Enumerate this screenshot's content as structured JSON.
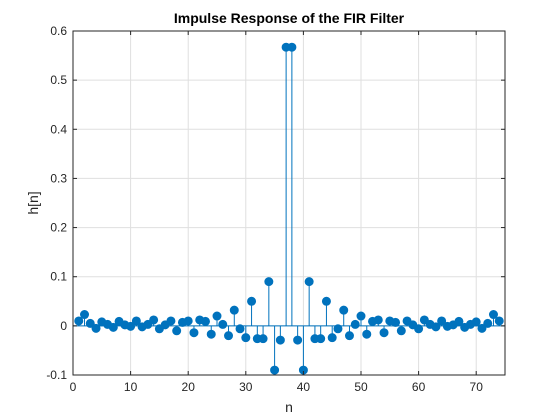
{
  "chart_data": {
    "type": "stem",
    "title": "Impulse Response of the FIR Filter",
    "xlabel": "n",
    "ylabel": "h[n]",
    "xlim": [
      0,
      75
    ],
    "ylim": [
      -0.1,
      0.6
    ],
    "xticks": [
      0,
      10,
      20,
      30,
      40,
      50,
      60,
      70
    ],
    "yticks": [
      -0.1,
      0,
      0.1,
      0.2,
      0.3,
      0.4,
      0.5,
      0.6
    ],
    "grid": true,
    "colors": {
      "stem": "#0072BD",
      "grid": "#dfdfdf",
      "axis": "#262626"
    },
    "series": [
      {
        "x": [
          1,
          2,
          3,
          4,
          5,
          6,
          7,
          8,
          9,
          10,
          11,
          12,
          13,
          14,
          15,
          16,
          17,
          18,
          19,
          20,
          21,
          22,
          23,
          24,
          25,
          26,
          27,
          28,
          29,
          30,
          31,
          32,
          33,
          34,
          35,
          36,
          37,
          38,
          39,
          40,
          41,
          42,
          43,
          44,
          45,
          46,
          47,
          48,
          49,
          50,
          51,
          52,
          53,
          54,
          55,
          56,
          57,
          58,
          59,
          60,
          61,
          62,
          63,
          64,
          65,
          66,
          67,
          68,
          69,
          70,
          71,
          72,
          73,
          74
        ],
        "values": [
          0.01,
          0.023,
          0.005,
          -0.005,
          0.008,
          0.003,
          -0.003,
          0.009,
          0.002,
          -0.001,
          0.01,
          -0.002,
          0.003,
          0.012,
          -0.006,
          0.002,
          0.01,
          -0.01,
          0.007,
          0.01,
          -0.014,
          0.012,
          0.009,
          -0.017,
          0.02,
          0.003,
          -0.02,
          0.032,
          -0.006,
          -0.024,
          0.05,
          -0.026,
          -0.026,
          0.09,
          -0.09,
          -0.029,
          0.567,
          0.567,
          -0.029,
          -0.09,
          0.09,
          -0.026,
          -0.026,
          0.05,
          -0.024,
          -0.006,
          0.032,
          -0.02,
          0.003,
          0.02,
          -0.017,
          0.009,
          0.012,
          -0.014,
          0.01,
          0.007,
          -0.01,
          0.01,
          0.002,
          -0.006,
          0.012,
          0.003,
          -0.002,
          0.01,
          -0.001,
          0.002,
          0.009,
          -0.003,
          0.003,
          0.008,
          -0.005,
          0.005,
          0.023,
          0.01
        ]
      }
    ]
  }
}
